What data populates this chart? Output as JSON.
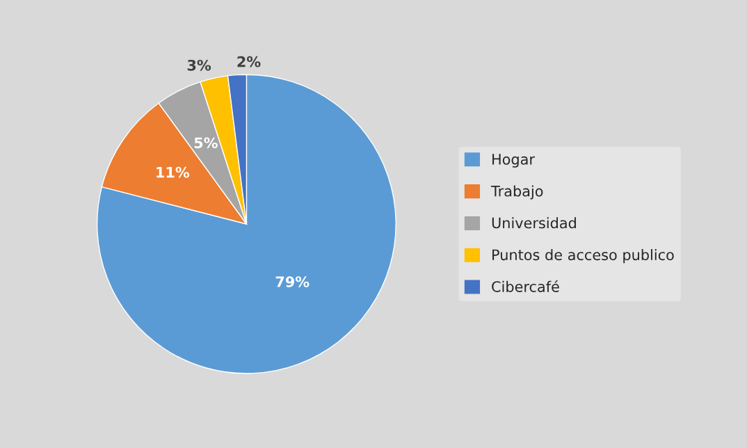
{
  "chart_data": {
    "type": "pie",
    "categories": [
      "Hogar",
      "Trabajo",
      "Universidad",
      "Puntos de acceso publico",
      "Cibercafé"
    ],
    "values": [
      79,
      11,
      5,
      3,
      2
    ],
    "colors": [
      "#5b9bd5",
      "#ed7d31",
      "#a5a5a5",
      "#ffc000",
      "#4472c4"
    ],
    "value_labels": [
      "79%",
      "11%",
      "5%",
      "3%",
      "2%"
    ],
    "legend": "right"
  }
}
